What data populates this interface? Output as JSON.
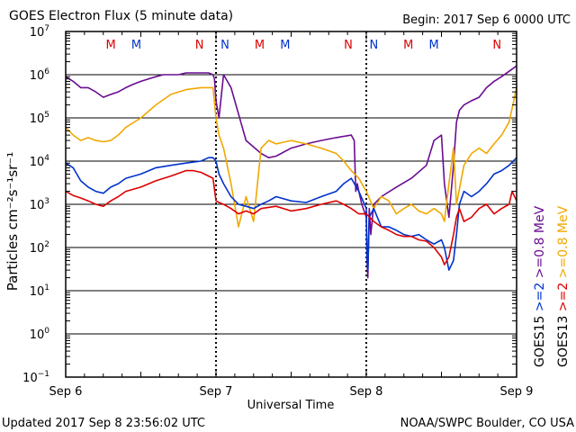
{
  "chart_data": {
    "type": "line",
    "title": "GOES Electron Flux (5 minute data)",
    "begin": "Begin: 2017 Sep 6 0000 UTC",
    "xlabel": "Universal Time",
    "ylabel": "Particles cm⁻²s⁻¹sr⁻¹",
    "footer_left": "Updated 2017 Sep  8 23:56:02 UTC",
    "footer_right": "NOAA/SWPC Boulder, CO USA",
    "x_unit": "days since Sep 6 00:00 UTC",
    "xlim": [
      0,
      3
    ],
    "x_ticks": [
      {
        "value": 0,
        "label": "Sep 6"
      },
      {
        "value": 1,
        "label": "Sep 7"
      },
      {
        "value": 2,
        "label": "Sep 8"
      },
      {
        "value": 3,
        "label": "Sep 9"
      }
    ],
    "y_scale": "log",
    "ylim": [
      0.1,
      10000000
    ],
    "y_ticks": [
      {
        "value": 10000000,
        "base": "10",
        "exp": "7"
      },
      {
        "value": 1000000,
        "base": "10",
        "exp": "6"
      },
      {
        "value": 100000,
        "base": "10",
        "exp": "5"
      },
      {
        "value": 10000,
        "base": "10",
        "exp": "4"
      },
      {
        "value": 1000,
        "base": "10",
        "exp": "3"
      },
      {
        "value": 100,
        "base": "10",
        "exp": "2"
      },
      {
        "value": 10,
        "base": "10",
        "exp": "1"
      },
      {
        "value": 1,
        "base": "10",
        "exp": "0"
      },
      {
        "value": 0.1,
        "base": "10",
        "exp": "−1"
      }
    ],
    "threshold": 1000,
    "grid": true,
    "legend_right": [
      {
        "label": ">=0.8 MeV",
        "color": "#6a0d91"
      },
      {
        "label": ">=0.8 MeV",
        "color": "#f0a800"
      },
      {
        "label": ">=2",
        "color": "#0033cc"
      },
      {
        "label": ">=2",
        "color": "#dd0000"
      },
      {
        "label": "GOES15",
        "color": "#000000"
      },
      {
        "label": "GOES13",
        "color": "#000000"
      }
    ],
    "mn_markers": [
      {
        "x": 0.3,
        "label": "M",
        "color": "#dd0000"
      },
      {
        "x": 0.47,
        "label": "M",
        "color": "#0033cc"
      },
      {
        "x": 0.89,
        "label": "N",
        "color": "#dd0000"
      },
      {
        "x": 1.06,
        "label": "N",
        "color": "#0033cc"
      },
      {
        "x": 1.29,
        "label": "M",
        "color": "#dd0000"
      },
      {
        "x": 1.46,
        "label": "M",
        "color": "#0033cc"
      },
      {
        "x": 1.88,
        "label": "N",
        "color": "#dd0000"
      },
      {
        "x": 2.05,
        "label": "N",
        "color": "#0033cc"
      },
      {
        "x": 2.28,
        "label": "M",
        "color": "#dd0000"
      },
      {
        "x": 2.45,
        "label": "M",
        "color": "#0033cc"
      },
      {
        "x": 2.87,
        "label": "N",
        "color": "#dd0000"
      },
      {
        "x": 3.04,
        "label": "N",
        "color": "#0033cc"
      }
    ],
    "series": [
      {
        "name": "GOES15 >=0.8 MeV",
        "color": "#6a0d91",
        "x": [
          0,
          0.05,
          0.1,
          0.15,
          0.2,
          0.25,
          0.3,
          0.35,
          0.4,
          0.45,
          0.5,
          0.55,
          0.6,
          0.65,
          0.7,
          0.75,
          0.8,
          0.85,
          0.9,
          0.95,
          0.98,
          0.99,
          1.0,
          1.02,
          1.05,
          1.1,
          1.2,
          1.3,
          1.35,
          1.4,
          1.5,
          1.6,
          1.7,
          1.8,
          1.9,
          1.92,
          1.93,
          1.94,
          1.95,
          1.97,
          2.0,
          2.005,
          2.01,
          2.02,
          2.03,
          2.05,
          2.1,
          2.2,
          2.3,
          2.4,
          2.45,
          2.5,
          2.52,
          2.55,
          2.58,
          2.6,
          2.62,
          2.65,
          2.7,
          2.75,
          2.8,
          2.85,
          2.9,
          2.95,
          3.0
        ],
        "y": [
          900000,
          700000,
          500000,
          500000,
          400000,
          300000,
          350000,
          400000,
          500000,
          600000,
          700000,
          800000,
          900000,
          1000000,
          1000000,
          1000000,
          1100000,
          1100000,
          1100000,
          1100000,
          1000000,
          800000,
          250000,
          100000,
          1000000,
          500000,
          30000,
          15000,
          12000,
          13000,
          20000,
          25000,
          30000,
          35000,
          40000,
          30000,
          2000,
          3000,
          2000,
          1000,
          500,
          50,
          20,
          800,
          200,
          1000,
          1500,
          2500,
          4000,
          8000,
          30000,
          40000,
          3000,
          500,
          8000,
          80000,
          150000,
          200000,
          250000,
          300000,
          500000,
          700000,
          900000,
          1200000,
          1600000
        ]
      },
      {
        "name": "GOES13 >=0.8 MeV",
        "color": "#f0a800",
        "x": [
          0,
          0.05,
          0.1,
          0.15,
          0.2,
          0.25,
          0.3,
          0.35,
          0.4,
          0.5,
          0.6,
          0.7,
          0.8,
          0.9,
          0.98,
          1.0,
          1.02,
          1.05,
          1.1,
          1.15,
          1.2,
          1.25,
          1.3,
          1.35,
          1.4,
          1.5,
          1.6,
          1.7,
          1.8,
          1.85,
          1.9,
          1.95,
          1.97,
          2.0,
          2.05,
          2.1,
          2.15,
          2.2,
          2.25,
          2.3,
          2.35,
          2.4,
          2.45,
          2.5,
          2.52,
          2.55,
          2.58,
          2.6,
          2.65,
          2.7,
          2.75,
          2.8,
          2.85,
          2.9,
          2.95,
          3.0
        ],
        "y": [
          60000,
          40000,
          30000,
          35000,
          30000,
          28000,
          30000,
          40000,
          60000,
          100000,
          200000,
          350000,
          450000,
          500000,
          500000,
          100000,
          40000,
          20000,
          3000,
          300,
          1500,
          400,
          20000,
          30000,
          25000,
          30000,
          25000,
          20000,
          15000,
          10000,
          6000,
          4000,
          3000,
          2000,
          800,
          1500,
          1200,
          600,
          800,
          1000,
          700,
          600,
          800,
          600,
          400,
          3000,
          20000,
          1000,
          8000,
          15000,
          20000,
          15000,
          25000,
          40000,
          80000,
          500000
        ]
      },
      {
        "name": "GOES15 >=2",
        "color": "#0033cc",
        "x": [
          0,
          0.05,
          0.1,
          0.15,
          0.2,
          0.25,
          0.3,
          0.35,
          0.4,
          0.5,
          0.6,
          0.7,
          0.8,
          0.9,
          0.95,
          0.98,
          1.0,
          1.02,
          1.05,
          1.1,
          1.15,
          1.2,
          1.25,
          1.3,
          1.35,
          1.4,
          1.5,
          1.6,
          1.7,
          1.8,
          1.85,
          1.9,
          1.95,
          2.0,
          2.005,
          2.01,
          2.02,
          2.05,
          2.1,
          2.15,
          2.2,
          2.25,
          2.3,
          2.35,
          2.4,
          2.45,
          2.5,
          2.52,
          2.55,
          2.58,
          2.6,
          2.62,
          2.65,
          2.7,
          2.75,
          2.8,
          2.85,
          2.9,
          2.95,
          3.0
        ],
        "y": [
          9000,
          7000,
          3500,
          2500,
          2000,
          1800,
          2500,
          3000,
          4000,
          5000,
          7000,
          8000,
          9000,
          10000,
          12000,
          12000,
          10000,
          5000,
          3000,
          1500,
          1000,
          900,
          800,
          1000,
          1200,
          1500,
          1200,
          1100,
          1500,
          2000,
          3000,
          4000,
          2000,
          800,
          60,
          30,
          500,
          800,
          300,
          300,
          250,
          200,
          180,
          200,
          150,
          120,
          150,
          100,
          30,
          50,
          200,
          1000,
          2000,
          1500,
          2000,
          3000,
          5000,
          6000,
          8000,
          12000
        ]
      },
      {
        "name": "GOES13 >=2",
        "color": "#dd0000",
        "x": [
          0,
          0.05,
          0.1,
          0.15,
          0.2,
          0.25,
          0.3,
          0.35,
          0.4,
          0.5,
          0.6,
          0.7,
          0.8,
          0.85,
          0.9,
          0.95,
          0.98,
          1.0,
          1.02,
          1.05,
          1.1,
          1.15,
          1.2,
          1.25,
          1.3,
          1.4,
          1.5,
          1.6,
          1.7,
          1.8,
          1.85,
          1.9,
          1.95,
          2.0,
          2.05,
          2.1,
          2.15,
          2.2,
          2.25,
          2.3,
          2.35,
          2.4,
          2.45,
          2.5,
          2.52,
          2.55,
          2.58,
          2.6,
          2.62,
          2.65,
          2.7,
          2.75,
          2.8,
          2.85,
          2.9,
          2.95,
          2.97,
          3.0
        ],
        "y": [
          2000,
          1600,
          1400,
          1200,
          1000,
          900,
          1200,
          1500,
          2000,
          2500,
          3500,
          4500,
          6000,
          6000,
          5500,
          4500,
          4000,
          1200,
          1100,
          1000,
          800,
          600,
          700,
          600,
          800,
          900,
          700,
          800,
          1000,
          1200,
          1000,
          800,
          600,
          600,
          400,
          300,
          250,
          200,
          180,
          180,
          150,
          140,
          100,
          60,
          40,
          60,
          200,
          500,
          800,
          400,
          500,
          800,
          1000,
          600,
          800,
          1000,
          2000,
          1200
        ]
      }
    ]
  }
}
